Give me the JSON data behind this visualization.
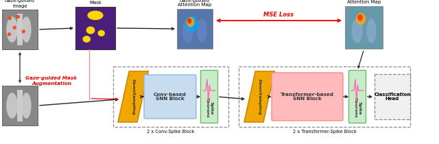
{
  "labels": {
    "gaze_image": "Gaze-guided\nImage",
    "gaze_mask": "Gaze-guided\nMask",
    "gaze_attn": "Gaze-guided\nAttention Map",
    "network_attn": "Network\nAttention Map",
    "augmentation": "Gaze-guided Mask\nAugmentation",
    "mse_loss": "MSE Loss",
    "conv_spike_label": "2 x Conv-Spike Block",
    "transformer_spike_label": "2 x Transformer-Spike Block",
    "downsampling": "DownSampling",
    "conv_snn": "Conv-based\nSNN Block",
    "transformer_snn": "Transformer-based\nSNN Block",
    "spike_neurons1": "Spike\nNeurons",
    "spike_neurons2": "Spike\nNeurons",
    "classification": "Classification\nHead"
  },
  "colors": {
    "downsampling_fill": "#F0A800",
    "downsampling_edge": "#C88800",
    "conv_snn_fill": "#C8DCF0",
    "conv_snn_edge": "#8ABBE0",
    "transformer_snn_fill": "#FFBBBB",
    "transformer_snn_edge": "#FF8888",
    "spike_fill": "#C8ECC8",
    "spike_edge": "#70B870",
    "classification_fill": "#F0F0F0",
    "classification_edge": "#888888",
    "gaze_mask_bg": "#4B1E7A",
    "arrow_color": "#222222",
    "red_color": "#EE0000",
    "dashed_box": "#888888",
    "white": "#ffffff",
    "xray_bg": "#BBBBBB",
    "xray_lung": "#888888",
    "pink_line": "#FF69B4"
  }
}
